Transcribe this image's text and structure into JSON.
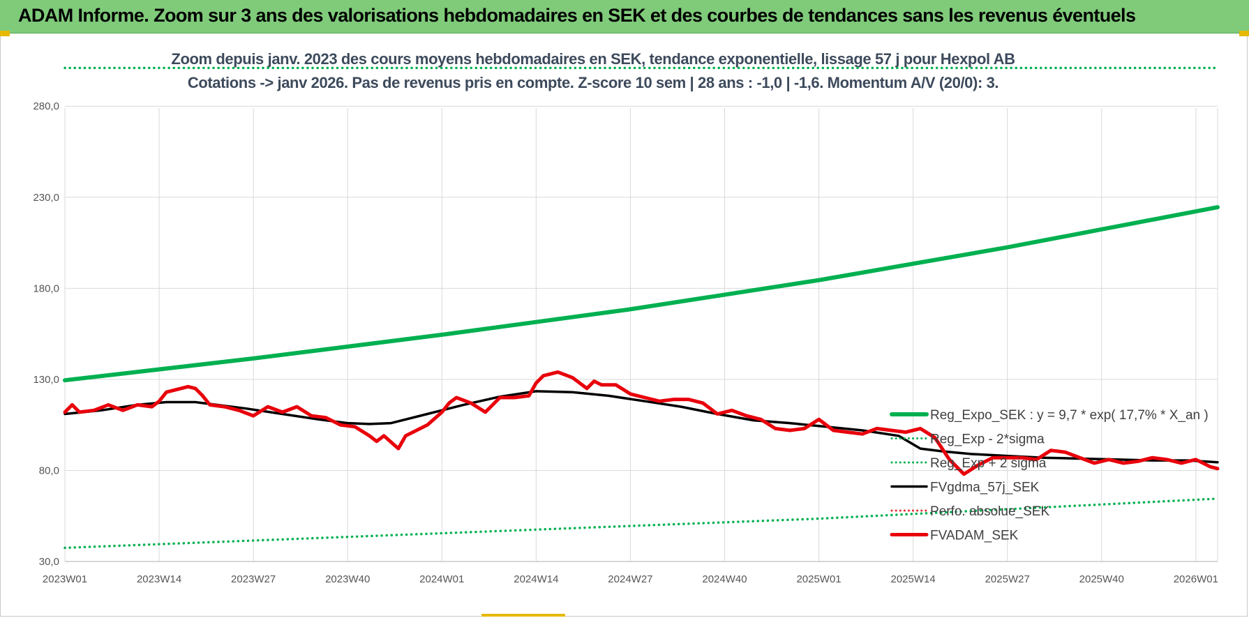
{
  "banner": {
    "title": "ADAM Informe. Zoom sur 3 ans des valorisations hebdomadaires en SEK et des courbes de tendances sans les revenus éventuels",
    "background": "#7fcb7a"
  },
  "chart_data": {
    "type": "line",
    "title_line1": "Zoom depuis janv. 2023 des cours moyens hebdomadaires en SEK, tendance exponentielle, lissage 57 j pour Hexpol AB",
    "title_line2": "Cotations -> janv 2026. Pas de revenus pris en compte. Z-score 10 sem | 28 ans : -1,0 | -1,6. Momentum A/V (20/0): 3.",
    "ylim": [
      30,
      300
    ],
    "yticks": [
      "30,0",
      "80,0",
      "130,0",
      "180,0",
      "230,0",
      "280,0"
    ],
    "ytick_values": [
      30,
      80,
      130,
      180,
      230,
      280
    ],
    "xlim": [
      0,
      159
    ],
    "xticks": [
      "2023W01",
      "2023W14",
      "2023W27",
      "2023W40",
      "2024W01",
      "2024W14",
      "2024W27",
      "2024W40",
      "2025W01",
      "2025W14",
      "2025W27",
      "2025W40",
      "2026W01"
    ],
    "xtick_positions": [
      0,
      13,
      26,
      39,
      52,
      65,
      78,
      91,
      104,
      117,
      130,
      143,
      156
    ],
    "grid": true,
    "legend_position": "right",
    "series": [
      {
        "name": "Reg_Expo_SEK : y = 9,7 * exp( 17,7% * X_an )",
        "color": "#00b050",
        "style": "solid",
        "width": 6,
        "x": [
          0,
          26,
          52,
          78,
          104,
          130,
          159
        ],
        "values": [
          129.5,
          141.5,
          154.5,
          168.5,
          184.5,
          202.5,
          224.5
        ]
      },
      {
        "name": "Reg_Exp - 2*sigma",
        "color": "#00b050",
        "style": "dotted",
        "width": 3.5,
        "x": [
          0,
          52,
          104,
          159
        ],
        "values": [
          37.5,
          45.5,
          53.5,
          64.5
        ]
      },
      {
        "name": "Reg_Exp + 2 sigma",
        "color": "#00b050",
        "style": "dotted",
        "width": 3.5,
        "x": [
          0,
          159
        ],
        "values": [
          301,
          301
        ]
      },
      {
        "name": "FVgdma_57j_SEK",
        "color": "#000000",
        "style": "solid",
        "width": 3.5,
        "x": [
          0,
          5,
          10,
          14,
          18,
          25,
          30,
          35,
          39,
          42,
          45,
          50,
          55,
          60,
          65,
          70,
          75,
          80,
          85,
          90,
          95,
          100,
          105,
          110,
          115,
          118,
          121,
          125,
          130,
          135,
          140,
          145,
          150,
          155,
          159
        ],
        "values": [
          111,
          113,
          116,
          117.5,
          117.5,
          114,
          111,
          108,
          106,
          105.5,
          106,
          111,
          116,
          120.5,
          123.5,
          123,
          121,
          118,
          115,
          111,
          107.5,
          106,
          104,
          102,
          99,
          92,
          90.5,
          89,
          88,
          87,
          86.5,
          86,
          85.5,
          85.5,
          84.5
        ]
      },
      {
        "name": "Perfo. absolue_SEK",
        "color": "#e03030",
        "style": "dotted",
        "width": 2,
        "x": [],
        "values": []
      },
      {
        "name": "FVADAM_SEK",
        "color": "#e8000b",
        "style": "solid",
        "width": 5,
        "x": [
          0,
          1,
          2,
          4,
          6,
          8,
          10,
          12,
          13,
          14,
          15,
          16,
          17,
          18,
          19,
          20,
          22,
          24,
          26,
          28,
          30,
          32,
          34,
          36,
          38,
          40,
          42,
          43,
          44,
          46,
          47,
          48,
          50,
          52,
          53,
          54,
          56,
          58,
          60,
          62,
          64,
          65,
          66,
          68,
          70,
          72,
          73,
          74,
          76,
          78,
          80,
          82,
          84,
          86,
          88,
          90,
          92,
          94,
          96,
          98,
          100,
          102,
          104,
          106,
          108,
          110,
          112,
          114,
          116,
          118,
          120,
          122,
          124,
          126,
          128,
          130,
          132,
          134,
          136,
          138,
          140,
          142,
          144,
          146,
          148,
          150,
          152,
          154,
          156,
          158,
          159
        ],
        "values": [
          112,
          116,
          112,
          113,
          116,
          113,
          116,
          115,
          118,
          123,
          124,
          125,
          126,
          125,
          121,
          116,
          115,
          113,
          110,
          115,
          112,
          115,
          110,
          109,
          105,
          104,
          99,
          96,
          99,
          92,
          99,
          101,
          105,
          112,
          117,
          120,
          117,
          112,
          120,
          120,
          121,
          128,
          132,
          134,
          131,
          125,
          129,
          127,
          127,
          122,
          120,
          118,
          119,
          119,
          117,
          111,
          113,
          110,
          108,
          103,
          102,
          103,
          108,
          102,
          101,
          100,
          103,
          102,
          101,
          103,
          98,
          86,
          78,
          83,
          87,
          87,
          87,
          86,
          91,
          90,
          87,
          84,
          86,
          84,
          85,
          87,
          86,
          84,
          86,
          82,
          81
        ]
      }
    ]
  }
}
